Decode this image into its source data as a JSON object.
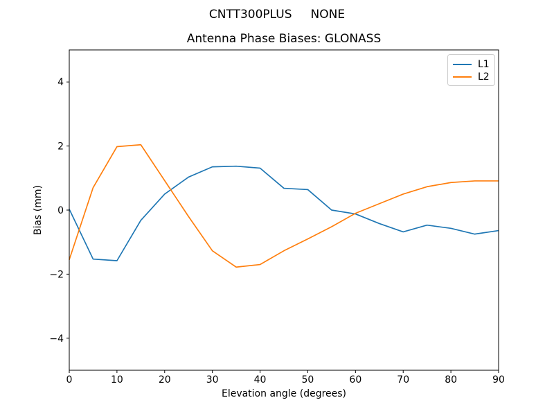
{
  "figure": {
    "suptitle": "CNTT300PLUS     NONE",
    "background": "#ffffff"
  },
  "chart_data": {
    "type": "line",
    "title": "Antenna Phase Biases: GLONASS",
    "xlabel": "Elevation angle (degrees)",
    "ylabel": "Bias (mm)",
    "xlim": [
      0,
      90
    ],
    "ylim": [
      -5,
      5
    ],
    "x_ticks": [
      0,
      10,
      20,
      30,
      40,
      50,
      60,
      70,
      80,
      90
    ],
    "y_ticks": [
      -4,
      -2,
      0,
      2,
      4
    ],
    "grid": false,
    "axis_color": "#000000",
    "legend": {
      "position": "upper right"
    },
    "x": [
      0,
      5,
      10,
      15,
      20,
      25,
      30,
      35,
      40,
      45,
      50,
      55,
      60,
      65,
      70,
      75,
      80,
      85,
      90
    ],
    "series": [
      {
        "name": "L1",
        "color": "#1f77b4",
        "values": [
          0.03,
          -1.53,
          -1.58,
          -0.32,
          0.5,
          1.03,
          1.35,
          1.37,
          1.31,
          0.68,
          0.64,
          0.0,
          -0.12,
          -0.42,
          -0.68,
          -0.47,
          -0.57,
          -0.75,
          -0.64
        ]
      },
      {
        "name": "L2",
        "color": "#ff7f0e",
        "values": [
          -1.55,
          0.7,
          1.98,
          2.04,
          0.92,
          -0.2,
          -1.27,
          -1.78,
          -1.7,
          -1.27,
          -0.9,
          -0.52,
          -0.1,
          0.2,
          0.5,
          0.73,
          0.86,
          0.91,
          0.91
        ]
      }
    ]
  }
}
